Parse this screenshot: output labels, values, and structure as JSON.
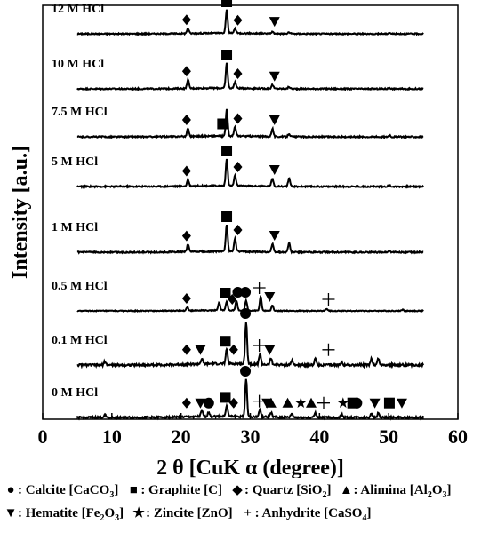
{
  "chart_data": {
    "type": "line",
    "xlabel": "2 θ  [CuK α  (degree)]",
    "ylabel": "Intensity [a.u.]",
    "xlim": [
      0,
      60
    ],
    "x_ticks": [
      "0",
      "10",
      "20",
      "30",
      "40",
      "50",
      "60"
    ],
    "data_x_range": [
      5,
      55
    ],
    "grid": false,
    "legend_placement": "bottom",
    "series": [
      {
        "name": "12 M HCl",
        "peaks": [
          {
            "x": 21.0,
            "h": 0.22
          },
          {
            "x": 26.6,
            "h": 1.0
          },
          {
            "x": 27.8,
            "h": 0.2
          },
          {
            "x": 33.2,
            "h": 0.08
          },
          {
            "x": 35.6,
            "h": 0.06
          },
          {
            "x": 50.1,
            "h": 0.05
          }
        ],
        "markers": [
          {
            "x": 20.8,
            "symbol": "diamond"
          },
          {
            "x": 26.6,
            "symbol": "square"
          },
          {
            "x": 28.2,
            "symbol": "diamond"
          },
          {
            "x": 33.5,
            "symbol": "tri-down"
          }
        ]
      },
      {
        "name": "10 M HCl",
        "peaks": [
          {
            "x": 21.0,
            "h": 0.35
          },
          {
            "x": 26.6,
            "h": 1.0
          },
          {
            "x": 27.8,
            "h": 0.25
          },
          {
            "x": 33.2,
            "h": 0.15
          },
          {
            "x": 35.6,
            "h": 0.08
          },
          {
            "x": 50.1,
            "h": 0.05
          }
        ],
        "markers": [
          {
            "x": 20.8,
            "symbol": "diamond"
          },
          {
            "x": 26.6,
            "symbol": "square"
          },
          {
            "x": 28.2,
            "symbol": "diamond"
          },
          {
            "x": 33.5,
            "symbol": "tri-down"
          }
        ]
      },
      {
        "name": "7.5 M HCl",
        "peaks": [
          {
            "x": 21.0,
            "h": 0.3
          },
          {
            "x": 26.6,
            "h": 1.0
          },
          {
            "x": 27.8,
            "h": 0.35
          },
          {
            "x": 33.2,
            "h": 0.3
          },
          {
            "x": 35.6,
            "h": 0.12
          },
          {
            "x": 50.1,
            "h": 0.05
          }
        ],
        "markers": [
          {
            "x": 20.8,
            "symbol": "diamond"
          },
          {
            "x": 26.0,
            "symbol": "square"
          },
          {
            "x": 28.2,
            "symbol": "diamond"
          },
          {
            "x": 33.5,
            "symbol": "tri-down"
          }
        ]
      },
      {
        "name": "5 M HCl",
        "peaks": [
          {
            "x": 21.0,
            "h": 0.25
          },
          {
            "x": 26.6,
            "h": 1.0
          },
          {
            "x": 27.8,
            "h": 0.4
          },
          {
            "x": 33.2,
            "h": 0.3
          },
          {
            "x": 35.6,
            "h": 0.3
          },
          {
            "x": 50.1,
            "h": 0.05
          }
        ],
        "markers": [
          {
            "x": 20.8,
            "symbol": "diamond"
          },
          {
            "x": 26.6,
            "symbol": "square"
          },
          {
            "x": 28.2,
            "symbol": "diamond"
          },
          {
            "x": 33.5,
            "symbol": "tri-down"
          }
        ]
      },
      {
        "name": "1 M HCl",
        "peaks": [
          {
            "x": 21.0,
            "h": 0.28
          },
          {
            "x": 26.6,
            "h": 1.0
          },
          {
            "x": 27.8,
            "h": 0.5
          },
          {
            "x": 33.2,
            "h": 0.3
          },
          {
            "x": 35.6,
            "h": 0.35
          },
          {
            "x": 50.1,
            "h": 0.05
          }
        ],
        "markers": [
          {
            "x": 20.8,
            "symbol": "diamond"
          },
          {
            "x": 26.6,
            "symbol": "square"
          },
          {
            "x": 28.2,
            "symbol": "diamond"
          },
          {
            "x": 33.5,
            "symbol": "tri-down"
          }
        ]
      },
      {
        "name": "0.5 M HCl",
        "peaks": [
          {
            "x": 20.9,
            "h": 0.2
          },
          {
            "x": 25.5,
            "h": 0.45
          },
          {
            "x": 26.6,
            "h": 0.5
          },
          {
            "x": 28.0,
            "h": 0.55
          },
          {
            "x": 29.4,
            "h": 0.55
          },
          {
            "x": 31.5,
            "h": 0.8
          },
          {
            "x": 33.2,
            "h": 0.3
          },
          {
            "x": 41.0,
            "h": 0.1
          },
          {
            "x": 52.0,
            "h": 0.07
          }
        ],
        "markers": [
          {
            "x": 20.8,
            "symbol": "diamond"
          },
          {
            "x": 26.4,
            "symbol": "square"
          },
          {
            "x": 27.4,
            "symbol": "diamond"
          },
          {
            "x": 28.2,
            "symbol": "circle"
          },
          {
            "x": 29.3,
            "symbol": "circle"
          },
          {
            "x": 31.3,
            "symbol": "plus"
          },
          {
            "x": 32.8,
            "symbol": "tri-down"
          },
          {
            "x": 41.3,
            "symbol": "plus"
          }
        ]
      },
      {
        "name": "0.1 M HCl",
        "peaks": [
          {
            "x": 9.0,
            "h": 0.08
          },
          {
            "x": 23.0,
            "h": 0.12
          },
          {
            "x": 26.6,
            "h": 0.35
          },
          {
            "x": 29.4,
            "h": 1.0
          },
          {
            "x": 31.4,
            "h": 0.25
          },
          {
            "x": 33.0,
            "h": 0.15
          },
          {
            "x": 36.0,
            "h": 0.1
          },
          {
            "x": 39.4,
            "h": 0.15
          },
          {
            "x": 43.2,
            "h": 0.08
          },
          {
            "x": 47.5,
            "h": 0.15
          },
          {
            "x": 48.5,
            "h": 0.15
          }
        ],
        "markers": [
          {
            "x": 20.8,
            "symbol": "diamond"
          },
          {
            "x": 22.8,
            "symbol": "tri-down"
          },
          {
            "x": 26.4,
            "symbol": "square"
          },
          {
            "x": 27.6,
            "symbol": "diamond"
          },
          {
            "x": 29.3,
            "symbol": "circle"
          },
          {
            "x": 31.3,
            "symbol": "plus"
          },
          {
            "x": 32.8,
            "symbol": "tri-down"
          },
          {
            "x": 41.3,
            "symbol": "plus"
          }
        ]
      },
      {
        "name": "0 M HCl",
        "peaks": [
          {
            "x": 9.0,
            "h": 0.08
          },
          {
            "x": 23.0,
            "h": 0.15
          },
          {
            "x": 24.0,
            "h": 0.12
          },
          {
            "x": 26.6,
            "h": 0.3
          },
          {
            "x": 29.4,
            "h": 1.0
          },
          {
            "x": 31.4,
            "h": 0.2
          },
          {
            "x": 33.0,
            "h": 0.12
          },
          {
            "x": 36.0,
            "h": 0.1
          },
          {
            "x": 39.4,
            "h": 0.12
          },
          {
            "x": 43.2,
            "h": 0.08
          },
          {
            "x": 47.5,
            "h": 0.12
          },
          {
            "x": 48.5,
            "h": 0.12
          }
        ],
        "markers": [
          {
            "x": 20.8,
            "symbol": "diamond"
          },
          {
            "x": 22.8,
            "symbol": "tri-down"
          },
          {
            "x": 24.0,
            "symbol": "circle"
          },
          {
            "x": 26.4,
            "symbol": "square"
          },
          {
            "x": 27.6,
            "symbol": "diamond"
          },
          {
            "x": 29.3,
            "symbol": "circle"
          },
          {
            "x": 31.3,
            "symbol": "plus"
          },
          {
            "x": 32.4,
            "symbol": "tri-down"
          },
          {
            "x": 33.0,
            "symbol": "tri-up"
          },
          {
            "x": 35.4,
            "symbol": "tri-up"
          },
          {
            "x": 37.3,
            "symbol": "star"
          },
          {
            "x": 38.8,
            "symbol": "tri-up"
          },
          {
            "x": 40.6,
            "symbol": "plus"
          },
          {
            "x": 43.4,
            "symbol": "star"
          },
          {
            "x": 44.8,
            "symbol": "square"
          },
          {
            "x": 45.4,
            "symbol": "circle"
          },
          {
            "x": 48.0,
            "symbol": "tri-down"
          },
          {
            "x": 50.1,
            "symbol": "square"
          },
          {
            "x": 51.9,
            "symbol": "tri-down"
          }
        ]
      }
    ],
    "legend": [
      {
        "symbol": "circle",
        "label": "Calcite",
        "formula": "CaCO",
        "sub": "3"
      },
      {
        "symbol": "square",
        "label": "Graphite",
        "formula": "C",
        "sub": ""
      },
      {
        "symbol": "diamond",
        "label": "Quartz",
        "formula": "SiO",
        "sub": "2"
      },
      {
        "symbol": "tri-up",
        "label": "Alimina",
        "formula": "Al",
        "sub": "2",
        "formula2": "O",
        "sub2": "3"
      },
      {
        "symbol": "tri-down",
        "label": "Hematite",
        "formula": "Fe",
        "sub": "2",
        "formula2": "O",
        "sub2": "3"
      },
      {
        "symbol": "star",
        "label": "Zincite",
        "formula": "ZnO",
        "sub": ""
      },
      {
        "symbol": "plus",
        "label": "Anhydrite",
        "formula": "CaSO",
        "sub": "4"
      }
    ]
  }
}
